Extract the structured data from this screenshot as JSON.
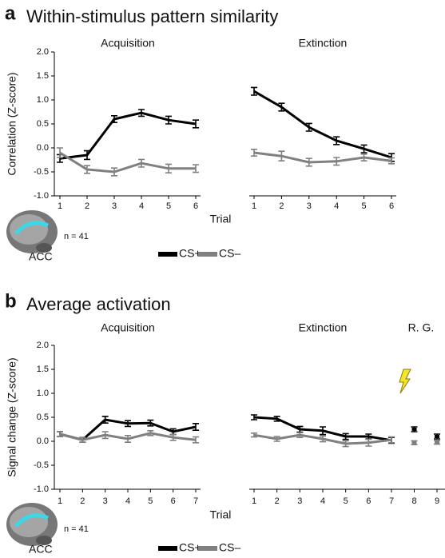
{
  "chart_data": [
    {
      "type": "line",
      "panel": "a",
      "title": "Within-stimulus pattern similarity",
      "ylabel": "Correlation (Z-score)",
      "xlabel": "Trial",
      "note": "n = 41",
      "region": "ACC",
      "ylim": [
        -1,
        2
      ],
      "yticks": [
        {
          "value": -1,
          "label": "-1.0"
        },
        {
          "value": -0.5,
          "label": "-0.5"
        },
        {
          "value": 0,
          "label": "0.0"
        },
        {
          "value": 0.5,
          "label": "0.5"
        },
        {
          "value": 1,
          "label": "1.0"
        },
        {
          "value": 1.5,
          "label": "1.5"
        },
        {
          "value": 2,
          "label": "2.0"
        }
      ],
      "series": [
        {
          "name": "CS+",
          "color": "#000000"
        },
        {
          "name": "CS–",
          "color": "#808080"
        }
      ],
      "subplots": [
        {
          "title": "Acquisition",
          "x": [
            1,
            2,
            3,
            4,
            5,
            6
          ],
          "xlim": [
            1,
            6
          ],
          "xticks": [
            1,
            2,
            3,
            4,
            5,
            6
          ],
          "series": [
            {
              "values": [
                -0.22,
                -0.15,
                0.6,
                0.73,
                0.58,
                0.5
              ],
              "errors": [
                0.08,
                0.09,
                0.07,
                0.07,
                0.08,
                0.08
              ]
            },
            {
              "values": [
                -0.1,
                -0.45,
                -0.5,
                -0.32,
                -0.43,
                -0.43
              ],
              "errors": [
                0.1,
                0.08,
                0.08,
                0.08,
                0.09,
                0.08
              ]
            }
          ]
        },
        {
          "title": "Extinction",
          "x": [
            1,
            2,
            3,
            4,
            5,
            6
          ],
          "xlim": [
            1,
            6
          ],
          "xticks": [
            1,
            2,
            3,
            4,
            5,
            6
          ],
          "series": [
            {
              "values": [
                1.18,
                0.85,
                0.43,
                0.15,
                -0.02,
                -0.2
              ],
              "errors": [
                0.08,
                0.08,
                0.08,
                0.08,
                0.08,
                0.08
              ]
            },
            {
              "values": [
                -0.1,
                -0.17,
                -0.3,
                -0.28,
                -0.2,
                -0.27
              ],
              "errors": [
                0.07,
                0.1,
                0.08,
                0.08,
                0.07,
                0.06
              ]
            }
          ]
        }
      ]
    },
    {
      "type": "line",
      "panel": "b",
      "title": "Average activation",
      "ylabel": "Signal change (Z-score)",
      "xlabel": "Trial",
      "note": "n = 41",
      "region": "ACC",
      "ylim": [
        -1,
        2
      ],
      "yticks": [
        {
          "value": -1,
          "label": "-1.0"
        },
        {
          "value": -0.5,
          "label": "-0.5"
        },
        {
          "value": 0,
          "label": "0.0"
        },
        {
          "value": 0.5,
          "label": "0.5"
        },
        {
          "value": 1,
          "label": "1.0"
        },
        {
          "value": 1.5,
          "label": "1.5"
        },
        {
          "value": 2,
          "label": "2.0"
        }
      ],
      "series": [
        {
          "name": "CS+",
          "color": "#000000"
        },
        {
          "name": "CS–",
          "color": "#808080"
        }
      ],
      "subplots": [
        {
          "title": "Acquisition",
          "x": [
            1,
            2,
            3,
            4,
            5,
            6,
            7
          ],
          "xlim": [
            1,
            7
          ],
          "xticks": [
            1,
            2,
            3,
            4,
            5,
            6,
            7
          ],
          "series": [
            {
              "values": [
                0.15,
                0.03,
                0.45,
                0.37,
                0.38,
                0.2,
                0.3
              ],
              "errors": [
                0.05,
                0.05,
                0.07,
                0.06,
                0.06,
                0.06,
                0.07
              ]
            },
            {
              "values": [
                0.15,
                0.03,
                0.13,
                0.05,
                0.17,
                0.08,
                0.03
              ],
              "errors": [
                0.05,
                0.05,
                0.07,
                0.07,
                0.05,
                0.06,
                0.06
              ]
            }
          ]
        },
        {
          "title": "Extinction",
          "x": [
            1,
            2,
            3,
            4,
            5,
            6,
            7
          ],
          "xlim": [
            1,
            7
          ],
          "xticks": [
            1,
            2,
            3,
            4,
            5,
            6,
            7
          ],
          "series": [
            {
              "values": [
                0.5,
                0.47,
                0.25,
                0.22,
                0.1,
                0.1,
                0.02
              ],
              "errors": [
                0.05,
                0.05,
                0.06,
                0.08,
                0.06,
                0.05,
                0.06
              ]
            },
            {
              "values": [
                0.13,
                0.05,
                0.13,
                0.05,
                -0.05,
                -0.03,
                0.03
              ],
              "errors": [
                0.04,
                0.05,
                0.05,
                0.06,
                0.06,
                0.07,
                0.06
              ]
            }
          ]
        },
        {
          "title": "R. G.",
          "type": "scatter",
          "x": [
            8,
            9
          ],
          "xlim": [
            7,
            9
          ],
          "xticks": [
            8,
            9
          ],
          "series": [
            {
              "values": [
                0.25,
                0.1
              ],
              "errors": [
                0.05,
                0.05
              ]
            },
            {
              "values": [
                -0.03,
                -0.02
              ],
              "errors": [
                0.04,
                0.04
              ]
            }
          ]
        }
      ]
    }
  ]
}
